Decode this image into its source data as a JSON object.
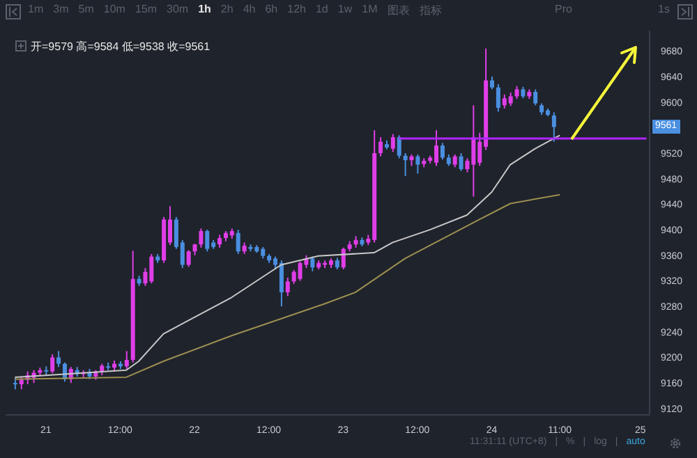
{
  "chart_data": {
    "type": "candlestick",
    "annotations": [
      "1m",
      "3m",
      "5m",
      "10m",
      "15m",
      "30m",
      "1h",
      "2h",
      "4h",
      "6h",
      "12h",
      "1d",
      "1w",
      "1M",
      "图表",
      "指标",
      "Pro",
      "1s",
      "开=9579 高=9584 低=9538 收=9561",
      {
        "text": "9561",
        "y": 9561
      },
      "11:31:11 (UTC+8)",
      "|",
      "%",
      "|",
      "log",
      "|",
      "auto"
    ],
    "categories": [
      null,
      null,
      null,
      null,
      null,
      null,
      "21",
      null,
      null,
      null,
      null,
      null,
      null,
      null,
      null,
      null,
      null,
      null,
      "12:00",
      null,
      null,
      null,
      null,
      null,
      null,
      null,
      null,
      null,
      null,
      null,
      "22",
      null,
      null,
      null,
      null,
      null,
      null,
      null,
      null,
      null,
      null,
      null,
      "12:00",
      null,
      null,
      null,
      null,
      null,
      null,
      null,
      null,
      null,
      null,
      null,
      "23",
      null,
      null,
      null,
      null,
      null,
      null,
      null,
      null,
      null,
      null,
      null,
      "12:00",
      null,
      null,
      null,
      null,
      null,
      null,
      null,
      null,
      null,
      null,
      null,
      "24",
      null,
      null,
      null,
      null,
      null,
      null,
      null,
      null,
      null,
      null,
      "11:00",
      null,
      null,
      null,
      null,
      null,
      null,
      null,
      null,
      null,
      null,
      null,
      null,
      "25",
      null
    ],
    "ohlc": [
      null,
      [
        9160,
        9168,
        9150,
        9158
      ],
      [
        9158,
        9170,
        9150,
        9165
      ],
      [
        9165,
        9178,
        9158,
        9172
      ],
      [
        9168,
        9180,
        9160,
        9176
      ],
      [
        9176,
        9184,
        9170,
        9180
      ],
      [
        9180,
        9186,
        9172,
        9178
      ],
      [
        9178,
        9205,
        9175,
        9200
      ],
      [
        9200,
        9210,
        9185,
        9190
      ],
      [
        9190,
        9192,
        9162,
        9166
      ],
      [
        9166,
        9185,
        9160,
        9182
      ],
      [
        9180,
        9185,
        9170,
        9174
      ],
      [
        9174,
        9180,
        9168,
        9176
      ],
      [
        9176,
        9182,
        9166,
        9170
      ],
      [
        9170,
        9180,
        9165,
        9178
      ],
      [
        9178,
        9190,
        9172,
        9187
      ],
      [
        9186,
        9192,
        9180,
        9184
      ],
      [
        9184,
        9195,
        9178,
        9190
      ],
      [
        9190,
        9194,
        9182,
        9186
      ],
      [
        9186,
        9210,
        9182,
        9196
      ],
      [
        9196,
        9367,
        9192,
        9323
      ],
      [
        9323,
        9328,
        9312,
        9316
      ],
      [
        9316,
        9340,
        9312,
        9334
      ],
      [
        9319,
        9362,
        9316,
        9358
      ],
      [
        9358,
        9362,
        9348,
        9352
      ],
      [
        9352,
        9420,
        9348,
        9416
      ],
      [
        9380,
        9437,
        9376,
        9416
      ],
      [
        9416,
        9420,
        9370,
        9373
      ],
      [
        9380,
        9384,
        9340,
        9345
      ],
      [
        9345,
        9368,
        9342,
        9366
      ],
      [
        9366,
        9378,
        9360,
        9377
      ],
      [
        9377,
        9402,
        9372,
        9398
      ],
      [
        9398,
        9400,
        9366,
        9370
      ],
      [
        9380,
        9384,
        9370,
        9373
      ],
      [
        9377,
        9392,
        9372,
        9387
      ],
      [
        9387,
        9398,
        9382,
        9395
      ],
      [
        9391,
        9402,
        9386,
        9398
      ],
      [
        9395,
        9400,
        9362,
        9366
      ],
      [
        9366,
        9380,
        9362,
        9375
      ],
      [
        9373,
        9377,
        9366,
        9370
      ],
      [
        9373,
        9376,
        9364,
        9366
      ],
      [
        9370,
        9373,
        9355,
        9359
      ],
      [
        9359,
        9362,
        9348,
        9352
      ],
      [
        9355,
        9358,
        9338,
        9345
      ],
      [
        9348,
        9352,
        9280,
        9302
      ],
      [
        9302,
        9325,
        9296,
        9319
      ],
      [
        9319,
        9337,
        9315,
        9334
      ],
      [
        9323,
        9350,
        9320,
        9348
      ],
      [
        9345,
        9360,
        9340,
        9355
      ],
      [
        9355,
        9358,
        9335,
        9341
      ],
      [
        9341,
        9352,
        9338,
        9348
      ],
      [
        9345,
        9352,
        9340,
        9348
      ],
      [
        9345,
        9355,
        9340,
        9352
      ],
      [
        9352,
        9356,
        9338,
        9341
      ],
      [
        9341,
        9372,
        9338,
        9370
      ],
      [
        9370,
        9382,
        9366,
        9377
      ],
      [
        9377,
        9390,
        9372,
        9384
      ],
      [
        9384,
        9388,
        9374,
        9377
      ],
      [
        9380,
        9392,
        9376,
        9386
      ],
      [
        9384,
        9556,
        9380,
        9520
      ],
      [
        9520,
        9545,
        9515,
        9538
      ],
      [
        9534,
        9540,
        9526,
        9529
      ],
      [
        9527,
        9550,
        9522,
        9545
      ],
      [
        9545,
        9548,
        9512,
        9516
      ],
      [
        9516,
        9520,
        9484,
        9509
      ],
      [
        9509,
        9518,
        9500,
        9515
      ],
      [
        9515,
        9518,
        9488,
        9502
      ],
      [
        9503,
        9512,
        9498,
        9508
      ],
      [
        9508,
        9516,
        9504,
        9513
      ],
      [
        9505,
        9556,
        9500,
        9532
      ],
      [
        9532,
        9536,
        9510,
        9513
      ],
      [
        9513,
        9518,
        9500,
        9503
      ],
      [
        9502,
        9518,
        9498,
        9515
      ],
      [
        9515,
        9520,
        9492,
        9495
      ],
      [
        9495,
        9512,
        9490,
        9508
      ],
      [
        9502,
        9595,
        9452,
        9545
      ],
      [
        9505,
        9552,
        9500,
        9538
      ],
      [
        9530,
        9684,
        9525,
        9634
      ],
      [
        9634,
        9640,
        9620,
        9623
      ],
      [
        9623,
        9628,
        9585,
        9591
      ],
      [
        9595,
        9612,
        9590,
        9606
      ],
      [
        9598,
        9615,
        9594,
        9609
      ],
      [
        9609,
        9625,
        9605,
        9620
      ],
      [
        9620,
        9624,
        9606,
        9609
      ],
      [
        9609,
        9620,
        9605,
        9616
      ],
      [
        9616,
        9620,
        9595,
        9598
      ],
      [
        9595,
        9598,
        9580,
        9584
      ],
      [
        9587,
        9590,
        9578,
        9580
      ],
      [
        9579,
        9584,
        9538,
        9561
      ],
      null,
      null,
      null,
      null,
      null,
      null,
      null,
      null,
      null,
      null,
      null,
      null,
      null,
      null,
      null
    ],
    "colors": [
      null,
      "#4a8fe0",
      "#e03ee8",
      "#e03ee8",
      "#e03ee8",
      "#e03ee8",
      "#4a8fe0",
      "#e03ee8",
      "#4a8fe0",
      "#4a8fe0",
      "#e03ee8",
      "#4a8fe0",
      "#e03ee8",
      "#4a8fe0",
      "#e03ee8",
      "#e03ee8",
      "#4a8fe0",
      "#e03ee8",
      "#4a8fe0",
      "#e03ee8",
      "#e03ee8",
      "#4a8fe0",
      "#e03ee8",
      "#e03ee8",
      "#4a8fe0",
      "#e03ee8",
      "#e03ee8",
      "#4a8fe0",
      "#4a8fe0",
      "#e03ee8",
      "#e03ee8",
      "#e03ee8",
      "#4a8fe0",
      "#4a8fe0",
      "#e03ee8",
      "#e03ee8",
      "#e03ee8",
      "#4a8fe0",
      "#e03ee8",
      "#4a8fe0",
      "#4a8fe0",
      "#4a8fe0",
      "#4a8fe0",
      "#4a8fe0",
      "#4a8fe0",
      "#e03ee8",
      "#e03ee8",
      "#e03ee8",
      "#e03ee8",
      "#4a8fe0",
      "#e03ee8",
      "#e03ee8",
      "#e03ee8",
      "#4a8fe0",
      "#e03ee8",
      "#e03ee8",
      "#e03ee8",
      "#4a8fe0",
      "#e03ee8",
      "#e03ee8",
      "#e03ee8",
      "#4a8fe0",
      "#e03ee8",
      "#4a8fe0",
      "#4a8fe0",
      "#e03ee8",
      "#4a8fe0",
      "#e03ee8",
      "#e03ee8",
      "#e03ee8",
      "#4a8fe0",
      "#4a8fe0",
      "#e03ee8",
      "#4a8fe0",
      "#e03ee8",
      "#e03ee8",
      "#e03ee8",
      "#e03ee8",
      "#4a8fe0",
      "#4a8fe0",
      "#e03ee8",
      "#e03ee8",
      "#e03ee8",
      "#4a8fe0",
      "#e03ee8",
      "#4a8fe0",
      "#4a8fe0",
      "#4a8fe0",
      "#4a8fe0",
      null,
      null,
      null,
      null,
      null,
      null,
      null,
      null,
      null,
      null,
      null,
      null,
      null,
      null,
      null
    ],
    "series": [
      {
        "type": "line",
        "color": "#c8c8c8",
        "values": [
          null,
          9169,
          null,
          null,
          null,
          null,
          9172,
          null,
          null,
          null,
          null,
          null,
          null,
          null,
          null,
          null,
          null,
          null,
          null,
          9180,
          null,
          9194,
          null,
          null,
          null,
          9237,
          null,
          null,
          null,
          null,
          null,
          null,
          null,
          null,
          null,
          null,
          9294,
          null,
          null,
          null,
          null,
          null,
          null,
          null,
          9345,
          null,
          null,
          null,
          null,
          null,
          9359,
          null,
          null,
          null,
          null,
          null,
          null,
          null,
          null,
          9364,
          null,
          null,
          9380,
          null,
          null,
          null,
          null,
          null,
          9400,
          null,
          null,
          null,
          null,
          null,
          9423,
          null,
          9441,
          null,
          9459,
          null,
          null,
          9502,
          null,
          null,
          null,
          9527,
          null,
          null,
          null,
          9548,
          null,
          null,
          null,
          null,
          null,
          null,
          null,
          null,
          null,
          null,
          null,
          null,
          null,
          null
        ]
      },
      {
        "type": "line",
        "color": "#9c8f52",
        "values": [
          null,
          9166,
          null,
          null,
          null,
          null,
          null,
          null,
          null,
          null,
          null,
          null,
          null,
          null,
          null,
          null,
          null,
          null,
          null,
          9169,
          null,
          null,
          null,
          null,
          null,
          9194,
          null,
          null,
          null,
          null,
          null,
          null,
          null,
          null,
          null,
          null,
          9234,
          null,
          null,
          null,
          null,
          null,
          null,
          null,
          null,
          null,
          null,
          null,
          null,
          null,
          null,
          9284,
          null,
          null,
          null,
          null,
          9302,
          null,
          null,
          null,
          null,
          null,
          null,
          null,
          9355,
          null,
          null,
          null,
          null,
          null,
          null,
          null,
          null,
          null,
          null,
          null,
          9416,
          null,
          null,
          null,
          null,
          9441,
          null,
          null,
          null,
          null,
          null,
          null,
          null,
          9455,
          null,
          null,
          null,
          null,
          null,
          null,
          null,
          null,
          null,
          null,
          null,
          null,
          null,
          null
        ]
      },
      {
        "type": "line",
        "color": "#b026ff",
        "values": [
          null,
          null,
          null,
          null,
          null,
          null,
          null,
          null,
          null,
          null,
          null,
          null,
          null,
          null,
          null,
          null,
          null,
          null,
          null,
          null,
          null,
          null,
          null,
          null,
          null,
          null,
          null,
          null,
          null,
          null,
          null,
          null,
          null,
          null,
          null,
          null,
          null,
          null,
          null,
          null,
          null,
          null,
          null,
          null,
          null,
          null,
          null,
          null,
          null,
          null,
          null,
          null,
          null,
          null,
          null,
          null,
          null,
          null,
          null,
          null,
          null,
          null,
          null,
          9543,
          null,
          null,
          null,
          null,
          null,
          null,
          null,
          null,
          null,
          null,
          null,
          null,
          null,
          null,
          null,
          null,
          null,
          null,
          null,
          null,
          null,
          null,
          null,
          null,
          null,
          null,
          null,
          null,
          null,
          null,
          null,
          null,
          null,
          null,
          null,
          null,
          null,
          null,
          null,
          9543
        ]
      }
    ],
    "ylim": [
      9110,
      9712
    ],
    "yticks": [
      9120,
      9160,
      9200,
      9240,
      9280,
      9320,
      9360,
      9400,
      9440,
      9480,
      9520,
      9600,
      9640,
      9680
    ]
  }
}
